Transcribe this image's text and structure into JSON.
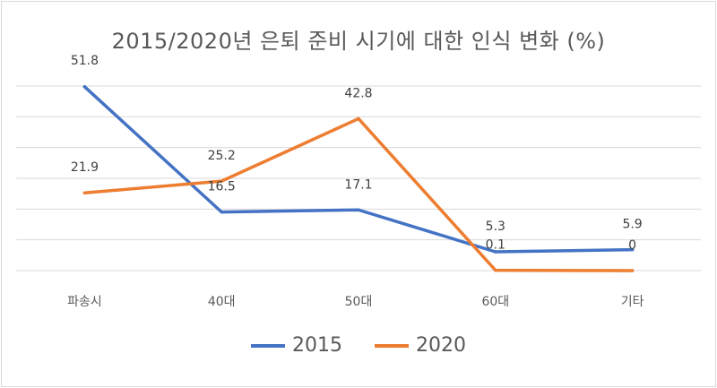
{
  "chart_data": {
    "type": "line",
    "title": "2015/2020년 은퇴 준비 시기에 대한 인식 변화 (%)",
    "categories": [
      "파송시",
      "40대",
      "50대",
      "60대",
      "기타"
    ],
    "ylim": [
      0,
      52
    ],
    "grid": true,
    "legend_position": "bottom",
    "series": [
      {
        "name": "2015",
        "color": "#4472c4",
        "values": [
          51.8,
          16.5,
          17.1,
          5.3,
          5.9
        ],
        "labels": [
          "51.8",
          "16.5",
          "17.1",
          "5.3",
          "5.9"
        ]
      },
      {
        "name": "2020",
        "color": "#ed7d31",
        "values": [
          21.9,
          25.2,
          42.8,
          0.1,
          0
        ],
        "labels": [
          "21.9",
          "25.2",
          "42.8",
          "0.1",
          "0"
        ]
      }
    ]
  }
}
